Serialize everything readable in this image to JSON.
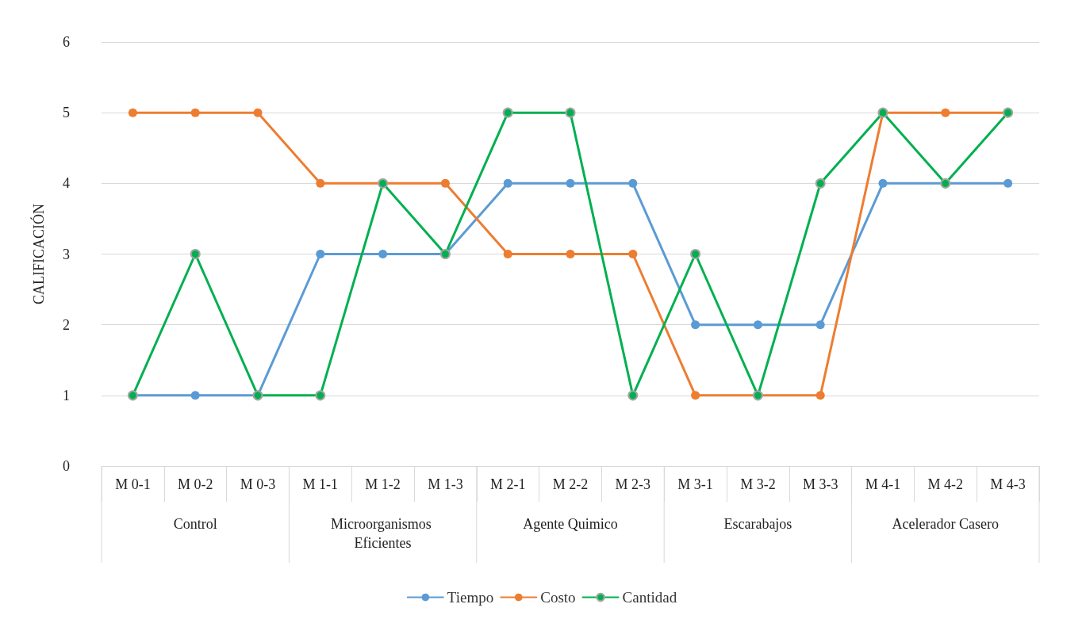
{
  "chart_data": {
    "type": "line",
    "ylabel": "CALIFICACIÓN",
    "categories": [
      "M 0-1",
      "M 0-2",
      "M 0-3",
      "M 1-1",
      "M 1-2",
      "M 1-3",
      "M 2-1",
      "M 2-2",
      "M 2-3",
      "M 3-1",
      "M 3-2",
      "M 3-3",
      "M 4-1",
      "M 4-2",
      "M 4-3"
    ],
    "series": [
      {
        "name": "Tiempo",
        "color": "#5b9bd5",
        "values": [
          1,
          1,
          1,
          3,
          3,
          3,
          4,
          4,
          4,
          2,
          2,
          2,
          4,
          4,
          4
        ]
      },
      {
        "name": "Costo",
        "color": "#ed7d31",
        "values": [
          5,
          5,
          5,
          4,
          4,
          4,
          3,
          3,
          3,
          1,
          1,
          1,
          5,
          5,
          5
        ]
      },
      {
        "name": "Cantidad",
        "color": "#00b050",
        "values": [
          1,
          3,
          1,
          1,
          4,
          3,
          5,
          5,
          1,
          3,
          1,
          4,
          5,
          4,
          5
        ]
      }
    ],
    "annotations": [
      "Control",
      "Microorganismos Eficientes",
      "Agente Quimico",
      "Escarabajos",
      "Acelerador Casero"
    ],
    "ylim": [
      0,
      6
    ],
    "yticks": [
      0,
      1,
      2,
      3,
      4,
      5,
      6
    ],
    "grid": "y",
    "legend": "bottom",
    "marker": "circle",
    "line_style": "solid"
  }
}
